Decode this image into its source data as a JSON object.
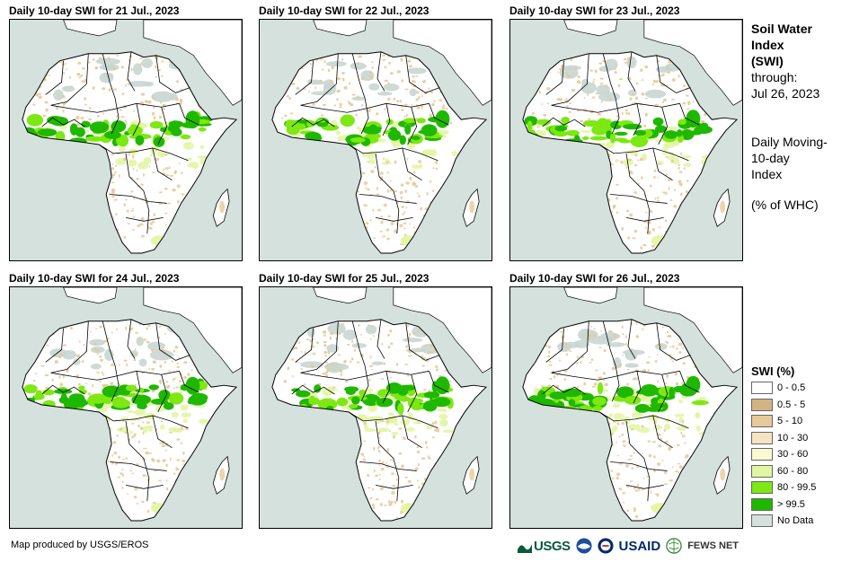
{
  "panels": [
    {
      "title": "Daily 10-day  SWI for 21 Jul., 2023"
    },
    {
      "title": "Daily 10-day  SWI for 22 Jul., 2023"
    },
    {
      "title": "Daily 10-day  SWI for 23 Jul., 2023"
    },
    {
      "title": "Daily 10-day  SWI for 24 Jul., 2023"
    },
    {
      "title": "Daily 10-day  SWI for 25 Jul., 2023"
    },
    {
      "title": "Daily 10-day  SWI for 26 Jul., 2023"
    }
  ],
  "side": {
    "title1": "Soil Water",
    "title2": "Index",
    "title3": "(SWI)",
    "through": "through:",
    "date": "Jul 26, 2023",
    "desc1": "Daily Moving-",
    "desc2": "10-day",
    "desc3": "Index",
    "units": "(% of WHC)"
  },
  "legend": {
    "title": "SWI (%)",
    "items": [
      {
        "label": "0 - 0.5",
        "color": "#ffffff"
      },
      {
        "label": "0.5 - 5",
        "color": "#d2b383"
      },
      {
        "label": "5 - 10",
        "color": "#e8c99a"
      },
      {
        "label": "10 - 30",
        "color": "#f5e3c2"
      },
      {
        "label": "30 - 60",
        "color": "#fafad2"
      },
      {
        "label": "60 - 80",
        "color": "#e3f5a0"
      },
      {
        "label": "80 - 99.5",
        "color": "#7de812"
      },
      {
        "label": "> 99.5",
        "color": "#1fb800"
      },
      {
        "label": "No Data",
        "color": "#d4e1dc"
      }
    ]
  },
  "credit": "Map produced by USGS/EROS",
  "logos": {
    "usgs": "USGS",
    "usaid": "USAID",
    "fews": "FEWS NET"
  },
  "colors": {
    "water": "#d4e1dc",
    "land": "#ffffff",
    "dry": "#e8c99a",
    "wet": "#1fb800",
    "wet_light": "#7de812",
    "moist": "#e3f5a0",
    "nodata": "#c8d6d2"
  }
}
